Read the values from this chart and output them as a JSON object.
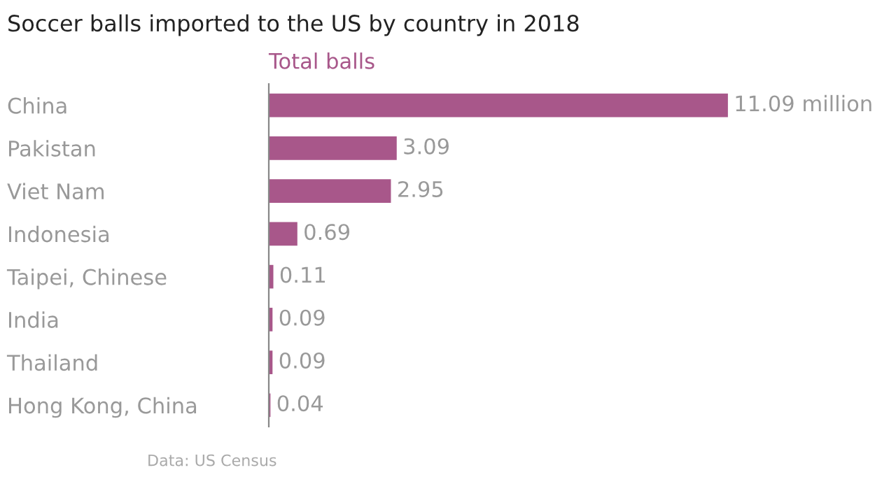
{
  "chart_data": {
    "type": "bar",
    "orientation": "horizontal",
    "title": "Soccer balls imported to the US by country in 2018",
    "categories": [
      "China",
      "Pakistan",
      "Viet Nam",
      "Indonesia",
      "Taipei, Chinese",
      "India",
      "Thailand",
      "Hong Kong, China"
    ],
    "series": [
      {
        "name": "Total balls",
        "color": "#a8578a",
        "values": [
          11.09,
          3.09,
          2.95,
          0.69,
          0.11,
          0.09,
          0.09,
          0.04
        ],
        "value_labels": [
          "11.09 million",
          "3.09",
          "2.95",
          "0.69",
          "0.11",
          "0.09",
          "0.09",
          "0.04"
        ]
      }
    ],
    "annotations": [
      "Data: US Census"
    ]
  }
}
